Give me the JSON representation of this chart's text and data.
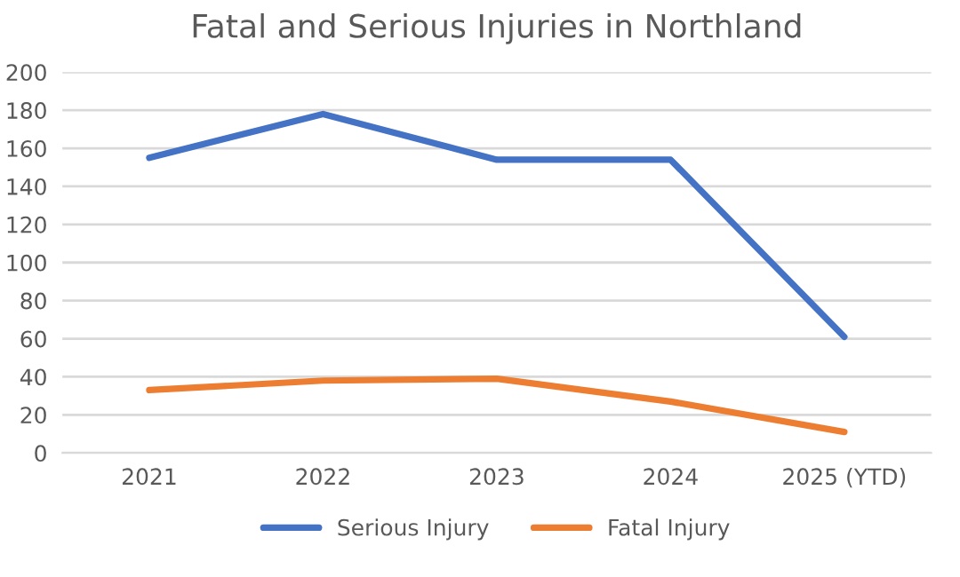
{
  "chart_data": {
    "type": "line",
    "title": "Fatal and Serious Injuries in Northland",
    "categories": [
      "2021",
      "2022",
      "2023",
      "2024",
      "2025 (YTD)"
    ],
    "series": [
      {
        "name": "Serious Injury",
        "color": "#4472c4",
        "values": [
          155,
          178,
          154,
          154,
          61
        ]
      },
      {
        "name": "Fatal Injury",
        "color": "#ed7d31",
        "values": [
          33,
          38,
          39,
          27,
          11
        ]
      }
    ],
    "ylim": [
      0,
      200
    ],
    "yticks": [
      0,
      20,
      40,
      60,
      80,
      100,
      120,
      140,
      160,
      180,
      200
    ],
    "grid": "y",
    "legend": "bottom",
    "marker": "none",
    "line_style": "solid"
  }
}
